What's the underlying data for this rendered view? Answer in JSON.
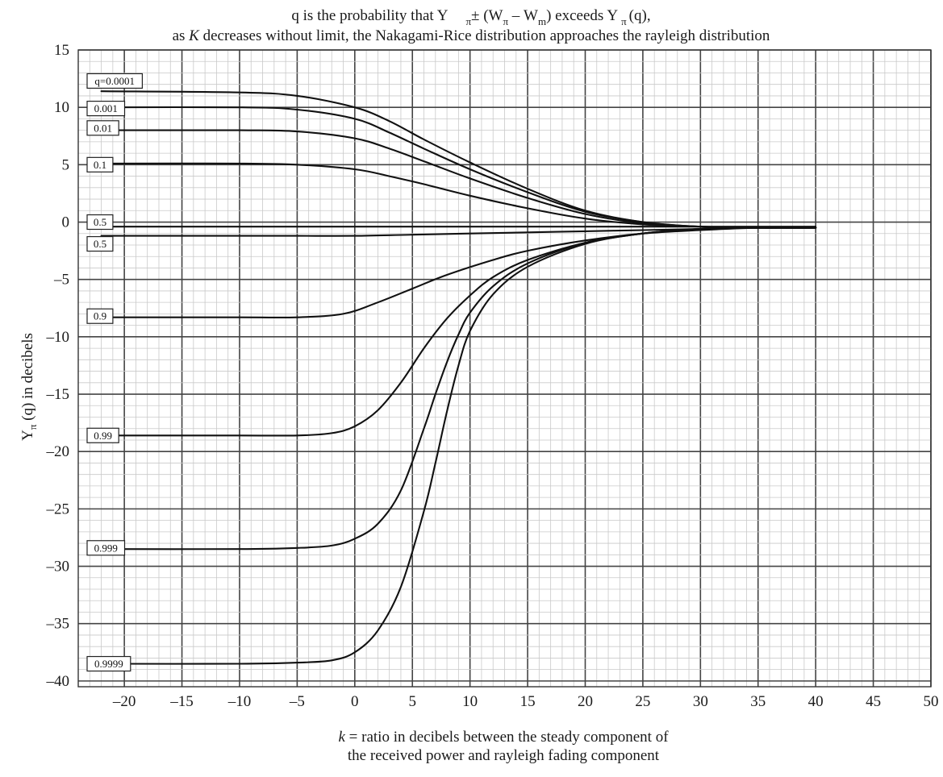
{
  "title": {
    "line1_prefix": "q is the probability that Y",
    "line1_sub1": "π",
    "line1_middle": "± (W",
    "line1_sub2": "π",
    "line1_minus": " – W",
    "line1_sub3": "m",
    "line1_exceeds": ") exceeds Y",
    "line1_sub4": "π",
    "line1_end": "(q),",
    "line2_prefix": "as ",
    "line2_k": "K",
    "line2_rest": " decreases without limit, the Nakagami-Rice distribution approaches the rayleigh distribution"
  },
  "axes": {
    "ylabel_main": "Y",
    "ylabel_sub": "π",
    "ylabel_rest": " (q)  in decibels",
    "xlabel_k": "k",
    "xlabel_line1": " = ratio in decibels between the steady component of",
    "xlabel_line2": "the received power and rayleigh fading component"
  },
  "chart_data": {
    "type": "line",
    "title": "q is the probability that Yπ ± (Wπ – Wm) exceeds Yπ (q), as K decreases without limit, the Nakagami-Rice distribution approaches the rayleigh distribution",
    "xlabel": "k = ratio in decibels between the steady component of the received power and rayleigh fading component",
    "ylabel": "Yπ (q) in decibels",
    "xlim": [
      -24,
      50
    ],
    "ylim": [
      -40.5,
      15
    ],
    "x_ticks": [
      -20,
      -15,
      -10,
      -5,
      0,
      5,
      10,
      15,
      20,
      25,
      30,
      35,
      40,
      45,
      50
    ],
    "y_ticks": [
      15,
      10,
      5,
      0,
      -5,
      -10,
      -15,
      -20,
      -25,
      -30,
      -35,
      -40
    ],
    "x_tick_labels": [
      "–20",
      "–15",
      "–10",
      "–5",
      "0",
      "5",
      "10",
      "15",
      "20",
      "25",
      "30",
      "35",
      "40",
      "45",
      "50"
    ],
    "y_tick_labels": [
      "15",
      "10",
      "5",
      "0",
      "–5",
      "–10",
      "–15",
      "–20",
      "–25",
      "–30",
      "–35",
      "–40"
    ],
    "grid": true,
    "series": [
      {
        "name": "q=0.0001",
        "label_y": 12.3,
        "x": [
          -22,
          -10,
          -5,
          0,
          3,
          6,
          10,
          15,
          20,
          25,
          30,
          35,
          40
        ],
        "y": [
          11.4,
          11.3,
          11.0,
          10.0,
          8.8,
          7.2,
          5.2,
          2.9,
          1.0,
          0.0,
          -0.4,
          -0.5,
          -0.5
        ]
      },
      {
        "name": "0.001",
        "label_y": 9.9,
        "x": [
          -22,
          -10,
          -5,
          0,
          3,
          6,
          10,
          15,
          20,
          25,
          30,
          35,
          40
        ],
        "y": [
          10.0,
          10.0,
          9.8,
          9.0,
          7.8,
          6.4,
          4.6,
          2.6,
          0.9,
          0.0,
          -0.4,
          -0.5,
          -0.5
        ]
      },
      {
        "name": "0.01",
        "label_y": 8.2,
        "x": [
          -22,
          -10,
          -5,
          0,
          3,
          6,
          10,
          15,
          20,
          25,
          30,
          35,
          40
        ],
        "y": [
          8.0,
          8.0,
          7.9,
          7.3,
          6.4,
          5.3,
          3.8,
          2.1,
          0.7,
          -0.1,
          -0.4,
          -0.5,
          -0.5
        ]
      },
      {
        "name": "0.1",
        "label_y": 5.0,
        "x": [
          -22,
          -10,
          -5,
          0,
          3,
          6,
          10,
          15,
          20,
          25,
          30,
          35,
          40
        ],
        "y": [
          5.1,
          5.1,
          5.0,
          4.6,
          4.0,
          3.3,
          2.3,
          1.2,
          0.3,
          -0.2,
          -0.4,
          -0.5,
          -0.5
        ]
      },
      {
        "name": "0.5",
        "label_y": 0.0,
        "x": [
          -22,
          -10,
          -5,
          0,
          5,
          10,
          15,
          20,
          25,
          30,
          35,
          40
        ],
        "y": [
          -0.4,
          -0.4,
          -0.4,
          -0.4,
          -0.4,
          -0.4,
          -0.4,
          -0.4,
          -0.4,
          -0.4,
          -0.4,
          -0.4
        ]
      },
      {
        "name": "0.5",
        "label_y": -1.9,
        "x": [
          -22,
          -10,
          -5,
          0,
          5,
          10,
          15,
          20,
          25,
          30,
          35,
          40
        ],
        "y": [
          -1.2,
          -1.2,
          -1.2,
          -1.2,
          -1.1,
          -1.0,
          -0.9,
          -0.8,
          -0.7,
          -0.6,
          -0.5,
          -0.5
        ]
      },
      {
        "name": "0.9",
        "label_y": -8.2,
        "x": [
          -22,
          -10,
          -5,
          -1,
          2,
          5,
          8,
          12,
          15,
          20,
          25,
          30,
          35,
          40
        ],
        "y": [
          -8.3,
          -8.3,
          -8.3,
          -8.0,
          -7.0,
          -5.8,
          -4.6,
          -3.3,
          -2.5,
          -1.6,
          -1.0,
          -0.7,
          -0.5,
          -0.5
        ]
      },
      {
        "name": "0.99",
        "label_y": -18.6,
        "x": [
          -22,
          -10,
          -5,
          -2,
          0,
          2,
          4,
          6,
          8,
          10,
          12,
          15,
          20,
          25,
          30,
          35,
          40
        ],
        "y": [
          -18.6,
          -18.6,
          -18.6,
          -18.4,
          -17.8,
          -16.4,
          -14.0,
          -11.0,
          -8.4,
          -6.4,
          -4.8,
          -3.3,
          -1.8,
          -1.0,
          -0.6,
          -0.5,
          -0.5
        ]
      },
      {
        "name": "0.999",
        "label_y": -28.4,
        "x": [
          -22,
          -10,
          -5,
          -2,
          0,
          2,
          4,
          6,
          7,
          8,
          9,
          10,
          12,
          15,
          20,
          25,
          30,
          35,
          40
        ],
        "y": [
          -28.5,
          -28.5,
          -28.4,
          -28.2,
          -27.6,
          -26.3,
          -23.4,
          -18.0,
          -15.0,
          -12.2,
          -9.8,
          -7.9,
          -5.6,
          -3.6,
          -1.8,
          -1.0,
          -0.6,
          -0.5,
          -0.5
        ]
      },
      {
        "name": "0.9999",
        "label_y": -38.5,
        "x": [
          -22,
          -10,
          -5,
          -2,
          0,
          2,
          4,
          6,
          7,
          8,
          9,
          10,
          12,
          15,
          20,
          25,
          30,
          35,
          40
        ],
        "y": [
          -38.5,
          -38.5,
          -38.4,
          -38.2,
          -37.5,
          -35.6,
          -31.8,
          -25.2,
          -21.0,
          -16.5,
          -12.5,
          -9.5,
          -6.3,
          -3.9,
          -1.9,
          -1.0,
          -0.6,
          -0.5,
          -0.5
        ]
      }
    ]
  }
}
